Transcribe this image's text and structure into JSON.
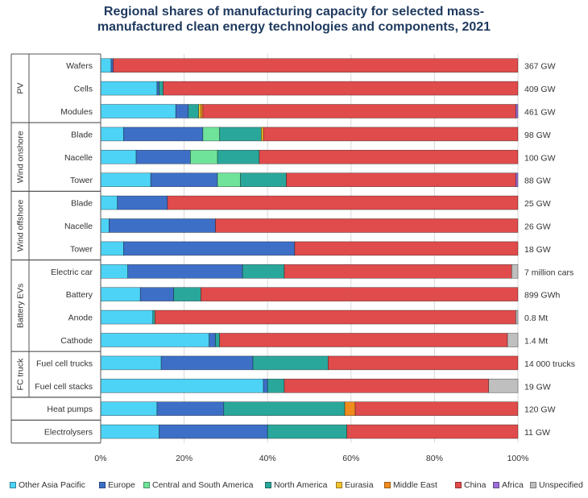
{
  "chart_data": {
    "type": "bar",
    "orientation": "horizontal-stacked-100",
    "title_line1": "Regional shares of manufacturing capacity for selected mass-",
    "title_line2": "manufactured clean energy technologies and components, 2021",
    "xlim": [
      0,
      100
    ],
    "x_ticks": [
      "0%",
      "20%",
      "40%",
      "60%",
      "80%",
      "100%"
    ],
    "legend_position": "bottom",
    "series": [
      {
        "name": "Other Asia Pacific",
        "color": "#4dd3f5"
      },
      {
        "name": "Europe",
        "color": "#3d6fc7"
      },
      {
        "name": "Central and South America",
        "color": "#6fe39a"
      },
      {
        "name": "North America",
        "color": "#2aa79b"
      },
      {
        "name": "Eurasia",
        "color": "#f2c12e"
      },
      {
        "name": "Middle East",
        "color": "#f08c1e"
      },
      {
        "name": "China",
        "color": "#e04b4b"
      },
      {
        "name": "Africa",
        "color": "#9b6fd6"
      },
      {
        "name": "Unspecified",
        "color": "#bfbfbf"
      }
    ],
    "groups": [
      {
        "label": "PV",
        "rows": [
          0,
          1,
          2
        ]
      },
      {
        "label": "Wind onshore",
        "rows": [
          3,
          4,
          5
        ]
      },
      {
        "label": "Wind offshore",
        "rows": [
          6,
          7,
          8
        ]
      },
      {
        "label": "Battery EVs",
        "rows": [
          9,
          10,
          11,
          12
        ]
      },
      {
        "label": "FC truck",
        "rows": [
          13,
          14
        ]
      },
      {
        "label": "",
        "rows": [
          15
        ]
      },
      {
        "label": "",
        "rows": [
          16
        ]
      }
    ],
    "rows": [
      {
        "label": "Wafers",
        "total": "367 GW",
        "values": [
          2.5,
          0.5,
          0,
          0,
          0,
          0,
          97,
          0,
          0
        ]
      },
      {
        "label": "Cells",
        "total": "409 GW",
        "values": [
          13.5,
          0.5,
          0,
          1,
          0,
          0,
          85,
          0,
          0
        ]
      },
      {
        "label": "Modules",
        "total": "461 GW",
        "values": [
          18,
          3,
          0,
          2.5,
          0.5,
          0.5,
          75,
          0.5,
          0
        ]
      },
      {
        "label": "Blade",
        "total": "98 GW",
        "values": [
          5.5,
          19,
          4,
          10,
          0.5,
          0,
          61,
          0,
          0
        ]
      },
      {
        "label": "Nacelle",
        "total": "100 GW",
        "values": [
          8.5,
          13,
          6.5,
          10,
          0,
          0,
          62,
          0,
          0
        ]
      },
      {
        "label": "Tower",
        "total": "88 GW",
        "values": [
          12,
          16,
          5.5,
          11,
          0,
          0,
          55,
          0.5,
          0
        ]
      },
      {
        "label": "Blade",
        "total": "25 GW",
        "values": [
          4,
          12,
          0,
          0,
          0,
          0,
          84,
          0,
          0
        ]
      },
      {
        "label": "Nacelle",
        "total": "26 GW",
        "values": [
          2,
          25.5,
          0,
          0,
          0,
          0,
          72.5,
          0,
          0
        ]
      },
      {
        "label": "Tower",
        "total": "18 GW",
        "values": [
          5.5,
          41,
          0,
          0,
          0,
          0,
          53.5,
          0,
          0
        ]
      },
      {
        "label": "Electric car",
        "total": "7 million cars",
        "values": [
          6.5,
          27.5,
          0,
          10,
          0,
          0,
          54.5,
          0,
          1.5
        ]
      },
      {
        "label": "Battery",
        "total": "899 GWh",
        "values": [
          9.5,
          8,
          0,
          6.5,
          0,
          0,
          76,
          0,
          0
        ]
      },
      {
        "label": "Anode",
        "total": "0.8 Mt",
        "values": [
          12.5,
          0,
          0,
          0.5,
          0,
          0,
          86.5,
          0,
          0.5
        ]
      },
      {
        "label": "Cathode",
        "total": "1.4 Mt",
        "values": [
          26,
          1.5,
          0,
          1,
          0,
          0,
          69,
          0,
          2.5
        ]
      },
      {
        "label": "Fuel cell trucks",
        "total": "14 000 trucks",
        "values": [
          14.5,
          22,
          0,
          18,
          0,
          0,
          45.5,
          0,
          0
        ]
      },
      {
        "label": "Fuel cell stacks",
        "total": "19 GW",
        "values": [
          39,
          1,
          0,
          4,
          0,
          0,
          49,
          0,
          7
        ]
      },
      {
        "label": "Heat pumps",
        "total": "120 GW",
        "values": [
          13.5,
          16,
          0,
          29,
          0,
          2.5,
          39,
          0,
          0
        ]
      },
      {
        "label": "Electrolysers",
        "total": "11 GW",
        "values": [
          14,
          26,
          0,
          19,
          0,
          0,
          41,
          0,
          0
        ]
      }
    ]
  }
}
